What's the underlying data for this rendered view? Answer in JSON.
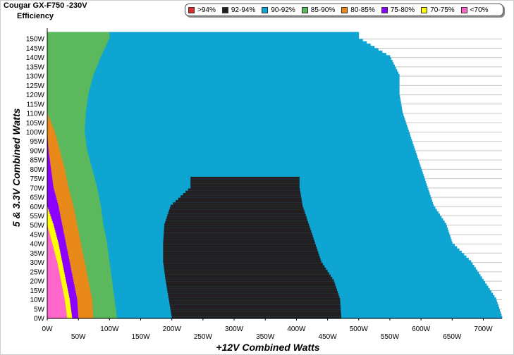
{
  "header": {
    "title": "Cougar GX-F750 -230V",
    "subtitle": "Efficiency"
  },
  "chart_data": {
    "type": "heatmap",
    "xlabel": "+12V Combined Watts",
    "ylabel": "5 & 3.3V Combined Watts",
    "xlim": [
      0,
      730
    ],
    "ylim": [
      0,
      155
    ],
    "x_ticks": [
      "0W",
      "50W",
      "100W",
      "150W",
      "200W",
      "250W",
      "300W",
      "350W",
      "400W",
      "450W",
      "500W",
      "550W",
      "600W",
      "650W",
      "700W"
    ],
    "y_ticks": [
      "0W",
      "5W",
      "10W",
      "15W",
      "20W",
      "25W",
      "30W",
      "35W",
      "40W",
      "45W",
      "50W",
      "55W",
      "60W",
      "65W",
      "70W",
      "75W",
      "80W",
      "85W",
      "90W",
      "95W",
      "100W",
      "105W",
      "110W",
      "115W",
      "120W",
      "125W",
      "130W",
      "135W",
      "140W",
      "145W",
      "150W"
    ],
    "legend": [
      {
        "label": ">94%",
        "color": "#dd2b2b"
      },
      {
        "label": "92-94%",
        "color": "#231f20"
      },
      {
        "label": "90-92%",
        "color": "#0ea5d2"
      },
      {
        "label": "85-90%",
        "color": "#5cb85c"
      },
      {
        "label": "80-85%",
        "color": "#e8891a"
      },
      {
        "label": "75-80%",
        "color": "#8b00ff"
      },
      {
        "label": "70-75%",
        "color": "#ffff00"
      },
      {
        "label": "<70%",
        "color": "#ff66cc"
      }
    ],
    "band_boundaries_x": [
      {
        "y": 0,
        "b70": 32,
        "b75": 40,
        "b80": 50,
        "b85": 74,
        "b90": 112,
        "dark_start": 200,
        "dark_end": 472,
        "max": 730
      },
      {
        "y": 10,
        "b70": 28,
        "b75": 36,
        "b80": 48,
        "b85": 72,
        "b90": 108,
        "dark_start": 195,
        "dark_end": 470,
        "max": 720
      },
      {
        "y": 20,
        "b70": 22,
        "b75": 30,
        "b80": 42,
        "b85": 66,
        "b90": 104,
        "dark_start": 190,
        "dark_end": 460,
        "max": 700
      },
      {
        "y": 30,
        "b70": 16,
        "b75": 24,
        "b80": 36,
        "b85": 60,
        "b90": 100,
        "dark_start": 186,
        "dark_end": 440,
        "max": 680
      },
      {
        "y": 40,
        "b70": 8,
        "b75": 18,
        "b80": 30,
        "b85": 54,
        "b90": 96,
        "dark_start": 186,
        "dark_end": 430,
        "max": 650
      },
      {
        "y": 50,
        "b70": 0,
        "b75": 10,
        "b80": 24,
        "b85": 48,
        "b90": 90,
        "dark_start": 188,
        "dark_end": 420,
        "max": 640
      },
      {
        "y": 60,
        "b70": 0,
        "b75": 0,
        "b80": 18,
        "b85": 42,
        "b90": 86,
        "dark_start": 198,
        "dark_end": 410,
        "max": 620
      },
      {
        "y": 70,
        "b70": 0,
        "b75": 0,
        "b80": 10,
        "b85": 34,
        "b90": 80,
        "dark_start": 230,
        "dark_end": 405,
        "max": 610
      },
      {
        "y": 80,
        "b70": 0,
        "b75": 0,
        "b80": 6,
        "b85": 28,
        "b90": 72,
        "dark_start": 0,
        "dark_end": 0,
        "max": 600
      },
      {
        "y": 90,
        "b70": 0,
        "b75": 0,
        "b80": 2,
        "b85": 20,
        "b90": 64,
        "dark_start": 0,
        "dark_end": 0,
        "max": 590
      },
      {
        "y": 100,
        "b70": 0,
        "b75": 0,
        "b80": 0,
        "b85": 12,
        "b90": 60,
        "dark_start": 0,
        "dark_end": 0,
        "max": 580
      },
      {
        "y": 110,
        "b70": 0,
        "b75": 0,
        "b80": 0,
        "b85": 0,
        "b90": 62,
        "dark_start": 0,
        "dark_end": 0,
        "max": 570
      },
      {
        "y": 120,
        "b70": 0,
        "b75": 0,
        "b80": 0,
        "b85": 0,
        "b90": 66,
        "dark_start": 0,
        "dark_end": 0,
        "max": 565
      },
      {
        "y": 130,
        "b70": 0,
        "b75": 0,
        "b80": 0,
        "b85": 0,
        "b90": 74,
        "dark_start": 0,
        "dark_end": 0,
        "max": 565
      },
      {
        "y": 140,
        "b70": 0,
        "b75": 0,
        "b80": 0,
        "b85": 0,
        "b90": 86,
        "dark_start": 0,
        "dark_end": 0,
        "max": 550
      },
      {
        "y": 150,
        "b70": 0,
        "b75": 0,
        "b80": 0,
        "b85": 0,
        "b90": 100,
        "dark_start": 0,
        "dark_end": 0,
        "max": 500
      }
    ]
  }
}
